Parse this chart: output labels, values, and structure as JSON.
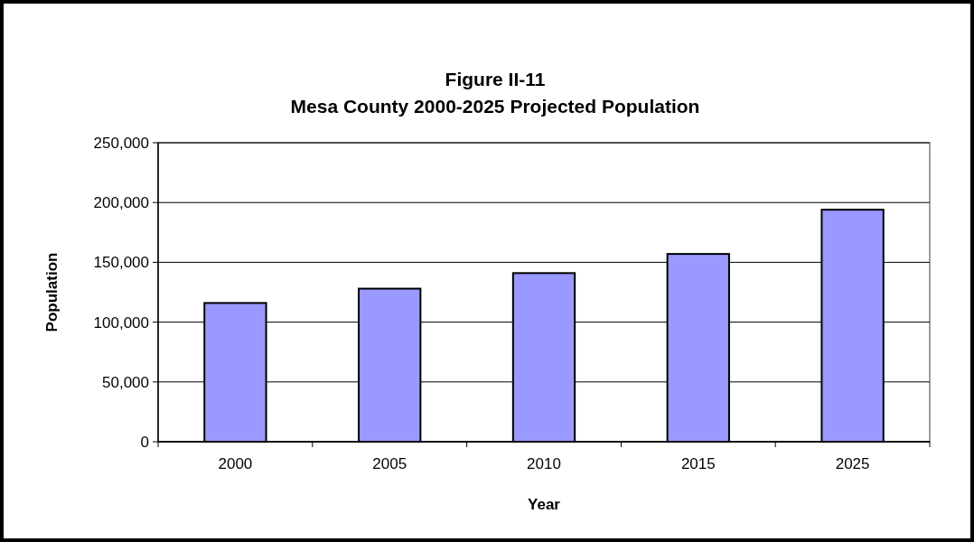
{
  "chart_data": {
    "type": "bar",
    "title": "Figure II-11\nMesa County 2000-2025 Projected Population",
    "xlabel": "Year",
    "ylabel": "Population",
    "categories": [
      "2000",
      "2005",
      "2010",
      "2015",
      "2025"
    ],
    "values": [
      116000,
      128000,
      141000,
      157000,
      194000
    ],
    "color": "#9999ff",
    "ylim": [
      0,
      250000
    ],
    "yticks": [
      {
        "value": 0,
        "label": "0"
      },
      {
        "value": 50000,
        "label": "50,000"
      },
      {
        "value": 100000,
        "label": "100,000"
      },
      {
        "value": 150000,
        "label": "150,000"
      },
      {
        "value": 200000,
        "label": "200,000"
      },
      {
        "value": 250000,
        "label": "250,000"
      }
    ],
    "grid": "y"
  }
}
